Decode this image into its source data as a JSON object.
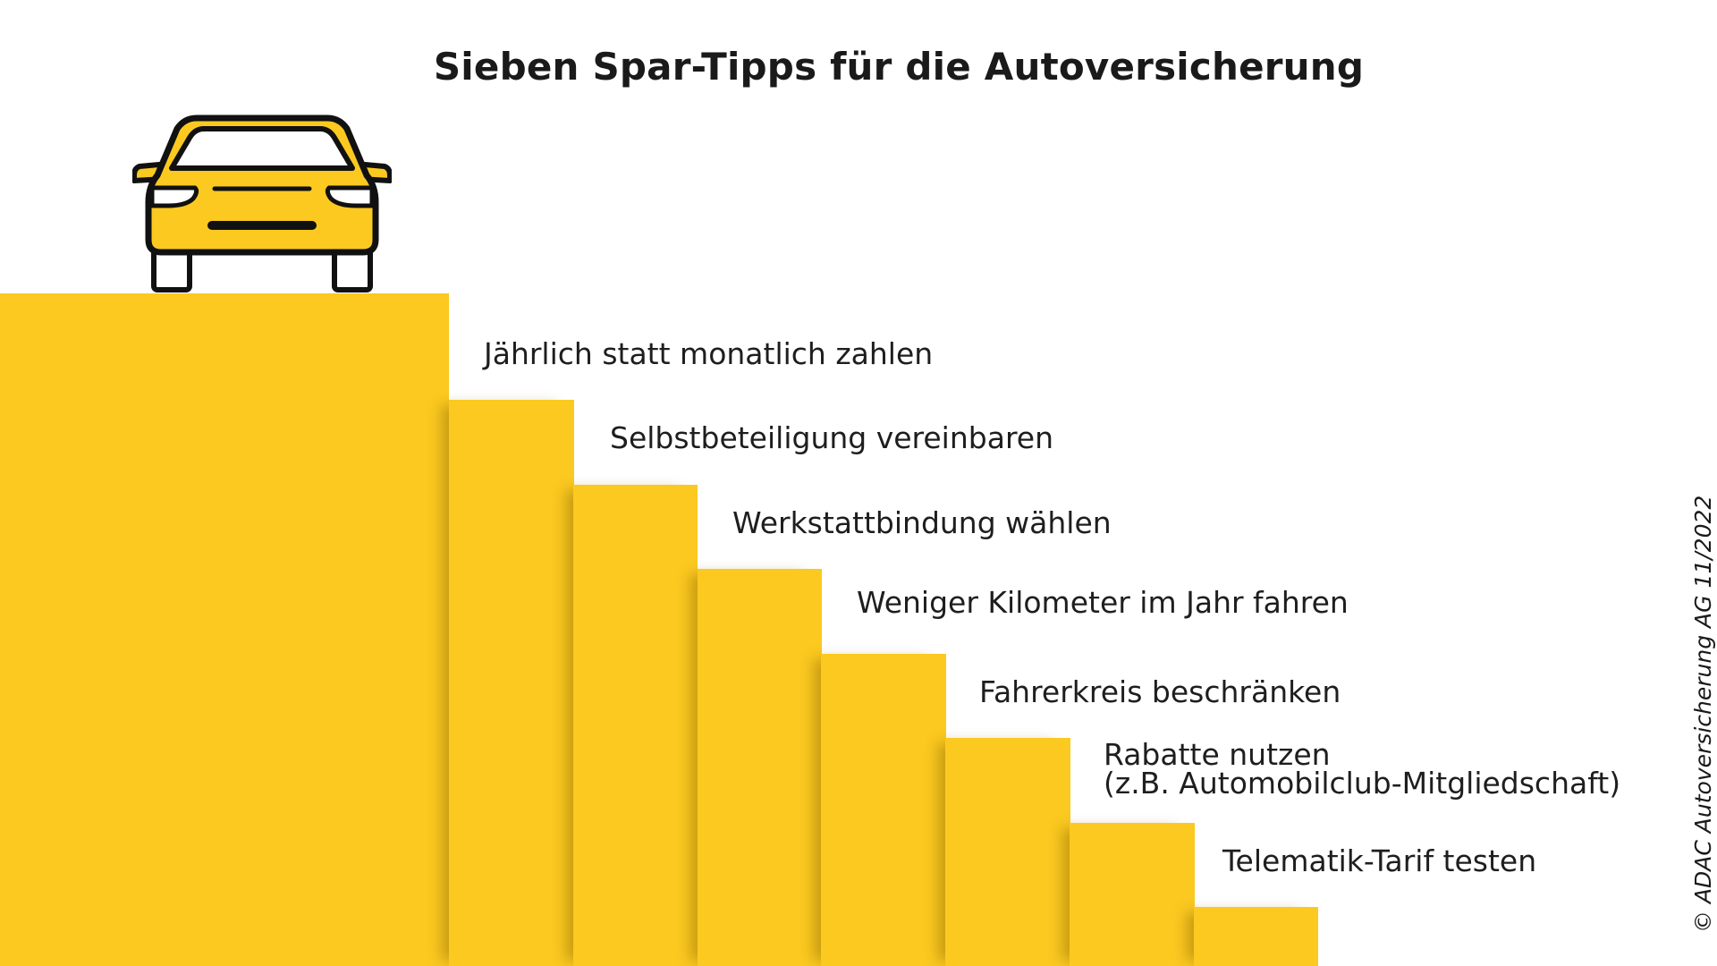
{
  "title": "Sieben Spar-Tipps für die Autoversicherung",
  "tips": [
    {
      "lines": [
        "Jährlich statt monatlich zahlen"
      ]
    },
    {
      "lines": [
        "Selbstbeteiligung vereinbaren"
      ]
    },
    {
      "lines": [
        "Werkstattbindung wählen"
      ]
    },
    {
      "lines": [
        "Weniger Kilometer im Jahr fahren"
      ]
    },
    {
      "lines": [
        "Fahrerkreis beschränken"
      ]
    },
    {
      "lines": [
        "Rabatte nutzen",
        "(z.B. Automobilclub-Mitgliedschaft)"
      ]
    },
    {
      "lines": [
        "Telematik-Tarif testen"
      ]
    }
  ],
  "credit": "© ADAC Autoversicherung AG 11/2022",
  "icon": "car-front-icon",
  "colors": {
    "step_yellow": "#FBC920",
    "text": "#1e1e1e",
    "car_outline": "#111111"
  }
}
